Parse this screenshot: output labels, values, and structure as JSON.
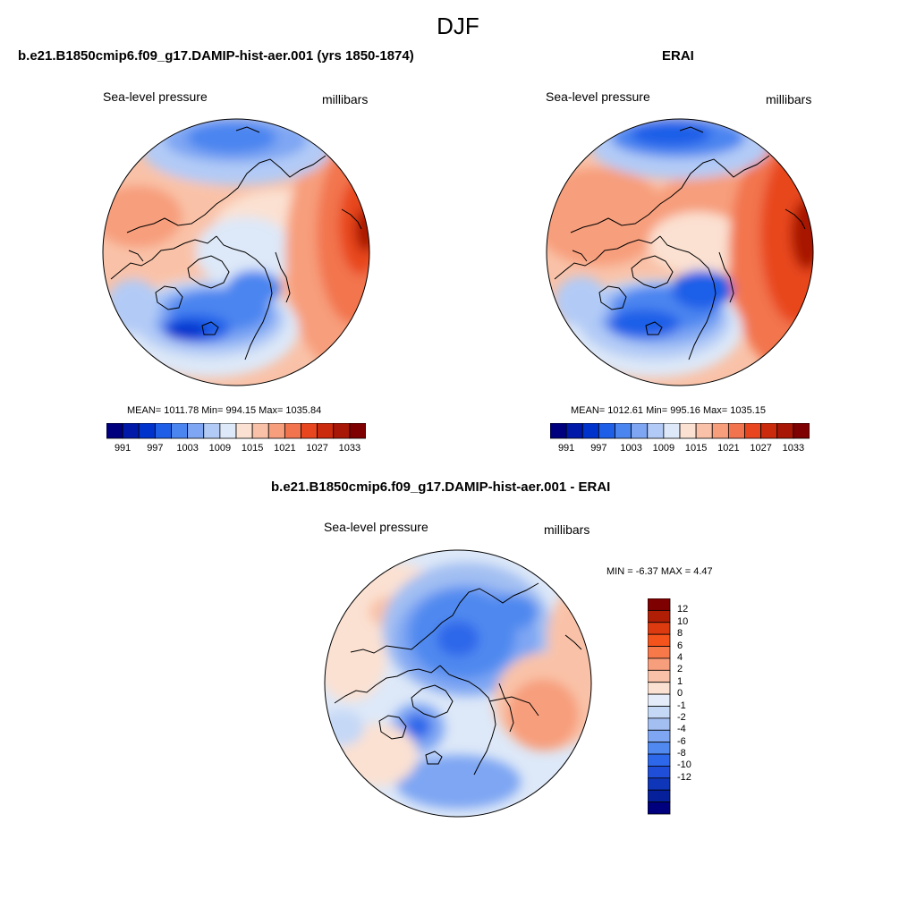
{
  "title": "DJF",
  "panels": {
    "model": {
      "title": "b.e21.B1850cmip6.f09_g17.DAMIP-hist-aer.001 (yrs 1850-1874)",
      "left_label": "Sea-level pressure",
      "right_label": "millibars",
      "stats": "MEAN= 1011.78  Min= 994.15  Max= 1035.84"
    },
    "obs": {
      "title": "ERAI",
      "left_label": "Sea-level pressure",
      "right_label": "millibars",
      "stats": "MEAN= 1012.61  Min= 995.16  Max= 1035.15"
    },
    "diff": {
      "title": "b.e21.B1850cmip6.f09_g17.DAMIP-hist-aer.001 - ERAI",
      "left_label": "Sea-level pressure",
      "right_label": "millibars",
      "stats": "MIN =  -6.37 MAX =   4.47"
    }
  },
  "colorbar_abs": {
    "colors": [
      "#00007f",
      "#0019a8",
      "#0033cc",
      "#1f5fe8",
      "#4b85f0",
      "#7ea6f3",
      "#b2cbf6",
      "#dde8f8",
      "#fbe1d2",
      "#f9c2a8",
      "#f79e7c",
      "#f2744e",
      "#e8461f",
      "#cc2a0c",
      "#a81705",
      "#7f0000"
    ],
    "tick_labels": [
      "991",
      "997",
      "1003",
      "1009",
      "1015",
      "1021",
      "1027",
      "1033"
    ]
  },
  "colorbar_diff": {
    "colors": [
      "#7f0000",
      "#b01e06",
      "#dd3a10",
      "#f4541c",
      "#f7794a",
      "#f79e7c",
      "#f9c2a8",
      "#fbe1d2",
      "#e3ecf8",
      "#c5d8f6",
      "#a3bff2",
      "#7ea6f3",
      "#5089ef",
      "#2e68ea",
      "#1f4fd8",
      "#0f35b8",
      "#05209a",
      "#00007f"
    ],
    "tick_labels": [
      "12",
      "10",
      "8",
      "6",
      "4",
      "2",
      "1",
      "0",
      "-1",
      "-2",
      "-4",
      "-6",
      "-8",
      "-10",
      "-12"
    ]
  }
}
